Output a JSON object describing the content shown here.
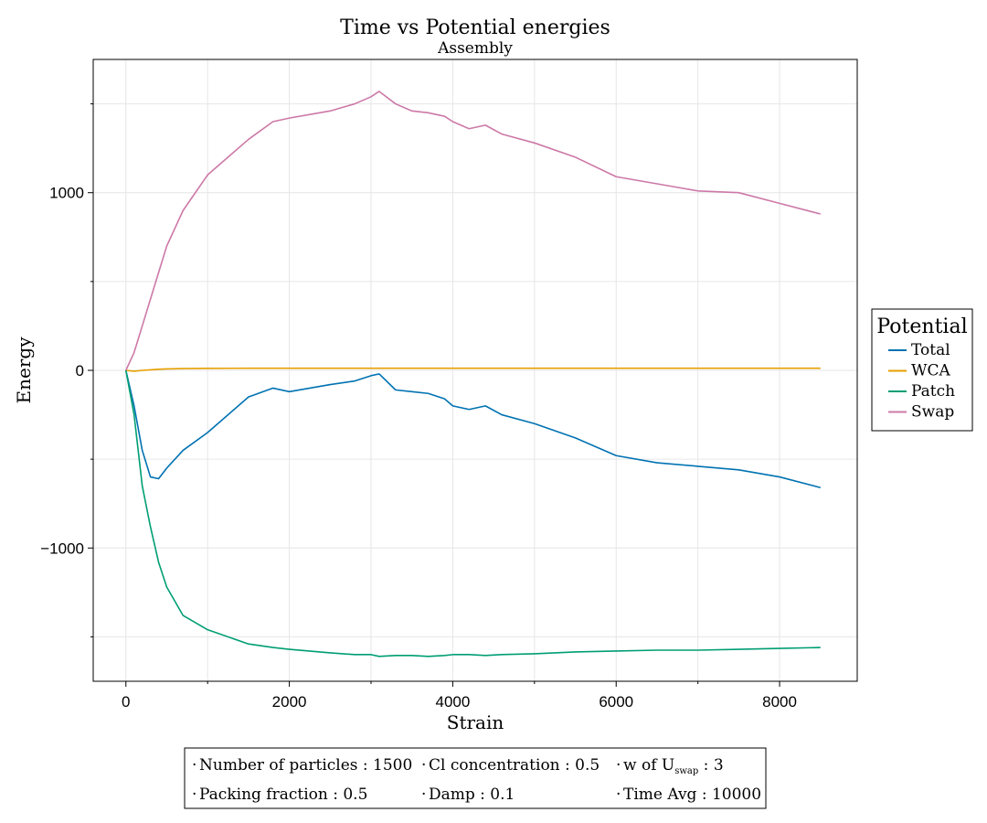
{
  "chart_data": {
    "type": "line",
    "title": "Time vs Potential energies",
    "subtitle": "Assembly",
    "xlabel": "Strain",
    "ylabel": "Energy",
    "xlim": [
      -400,
      8950
    ],
    "ylim": [
      -1750,
      1750
    ],
    "x_ticks": [
      0,
      2000,
      4000,
      6000,
      8000
    ],
    "x_tick_labels": [
      "0",
      "2000",
      "4000",
      "6000",
      "8000"
    ],
    "y_ticks": [
      -1000,
      0,
      1000
    ],
    "y_tick_labels": [
      "−1000",
      "0",
      "1000"
    ],
    "grid": true,
    "legend": {
      "title": "Potential",
      "position": "right"
    },
    "x": [
      0,
      100,
      200,
      300,
      400,
      500,
      700,
      1000,
      1500,
      1800,
      2000,
      2500,
      2800,
      3000,
      3100,
      3300,
      3500,
      3700,
      3900,
      4000,
      4200,
      4400,
      4600,
      5000,
      5500,
      6000,
      6500,
      7000,
      7500,
      8000,
      8500
    ],
    "series": [
      {
        "name": "Total",
        "color": "#0072b2",
        "values": [
          0,
          -200,
          -450,
          -600,
          -610,
          -550,
          -450,
          -350,
          -150,
          -100,
          -120,
          -80,
          -60,
          -30,
          -20,
          -110,
          -120,
          -130,
          -160,
          -200,
          -220,
          -200,
          -250,
          -300,
          -380,
          -480,
          -520,
          -540,
          -560,
          -600,
          -660
        ]
      },
      {
        "name": "WCA",
        "color": "#e69f00",
        "values": [
          0,
          -5,
          0,
          3,
          6,
          8,
          10,
          11,
          12,
          12,
          12,
          12,
          12,
          12,
          12,
          12,
          12,
          12,
          12,
          12,
          12,
          12,
          12,
          12,
          12,
          12,
          12,
          12,
          12,
          12,
          12
        ]
      },
      {
        "name": "Patch",
        "color": "#009e73",
        "values": [
          0,
          -250,
          -650,
          -880,
          -1080,
          -1220,
          -1380,
          -1460,
          -1540,
          -1560,
          -1570,
          -1590,
          -1600,
          -1600,
          -1610,
          -1605,
          -1605,
          -1610,
          -1605,
          -1600,
          -1600,
          -1605,
          -1600,
          -1595,
          -1585,
          -1580,
          -1575,
          -1575,
          -1570,
          -1565,
          -1560
        ]
      },
      {
        "name": "Swap",
        "color": "#cc79a7",
        "values": [
          0,
          100,
          250,
          400,
          550,
          700,
          900,
          1100,
          1300,
          1400,
          1420,
          1460,
          1500,
          1540,
          1570,
          1500,
          1460,
          1450,
          1430,
          1400,
          1360,
          1380,
          1330,
          1280,
          1200,
          1090,
          1050,
          1010,
          1000,
          940,
          880
        ]
      }
    ]
  },
  "info_box": {
    "row1": [
      "Number of particles : 1500",
      "Cl concentration : 0.5",
      "w of U",
      "swap",
      " : 3"
    ],
    "row2": [
      "Packing fraction : 0.5",
      "Damp : 0.1",
      "Time Avg : 10000"
    ]
  }
}
